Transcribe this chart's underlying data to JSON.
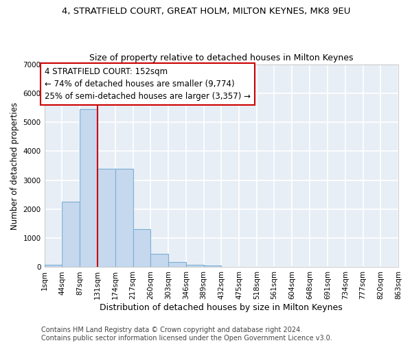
{
  "title": "4, STRATFIELD COURT, GREAT HOLM, MILTON KEYNES, MK8 9EU",
  "subtitle": "Size of property relative to detached houses in Milton Keynes",
  "xlabel": "Distribution of detached houses by size in Milton Keynes",
  "ylabel": "Number of detached properties",
  "bin_edges": [
    1,
    44,
    87,
    131,
    174,
    217,
    260,
    303,
    346,
    389,
    432,
    475,
    518,
    561,
    604,
    648,
    691,
    734,
    777,
    820,
    863
  ],
  "bar_heights": [
    80,
    2270,
    5450,
    3400,
    3400,
    1320,
    460,
    170,
    90,
    60,
    0,
    0,
    0,
    0,
    0,
    0,
    0,
    0,
    0,
    0
  ],
  "bar_color": "#c5d8ee",
  "bar_edgecolor": "#7bafd4",
  "background_color": "#e8eef6",
  "grid_color": "#ffffff",
  "vline_x": 131,
  "vline_color": "#cc0000",
  "annotation_title": "4 STRATFIELD COURT: 152sqm",
  "annotation_line1": "← 74% of detached houses are smaller (9,774)",
  "annotation_line2": "25% of semi-detached houses are larger (3,357) →",
  "annotation_box_color": "#ffffff",
  "annotation_border_color": "#cc0000",
  "ylim": [
    0,
    7000
  ],
  "yticks": [
    0,
    1000,
    2000,
    3000,
    4000,
    5000,
    6000,
    7000
  ],
  "tick_labels": [
    "1sqm",
    "44sqm",
    "87sqm",
    "131sqm",
    "174sqm",
    "217sqm",
    "260sqm",
    "303sqm",
    "346sqm",
    "389sqm",
    "432sqm",
    "475sqm",
    "518sqm",
    "561sqm",
    "604sqm",
    "648sqm",
    "691sqm",
    "734sqm",
    "777sqm",
    "820sqm",
    "863sqm"
  ],
  "footer_line1": "Contains HM Land Registry data © Crown copyright and database right 2024.",
  "footer_line2": "Contains public sector information licensed under the Open Government Licence v3.0.",
  "title_fontsize": 9.5,
  "subtitle_fontsize": 9,
  "xlabel_fontsize": 9,
  "ylabel_fontsize": 8.5,
  "tick_fontsize": 7.5,
  "footer_fontsize": 7,
  "ann_fontsize": 8.5
}
